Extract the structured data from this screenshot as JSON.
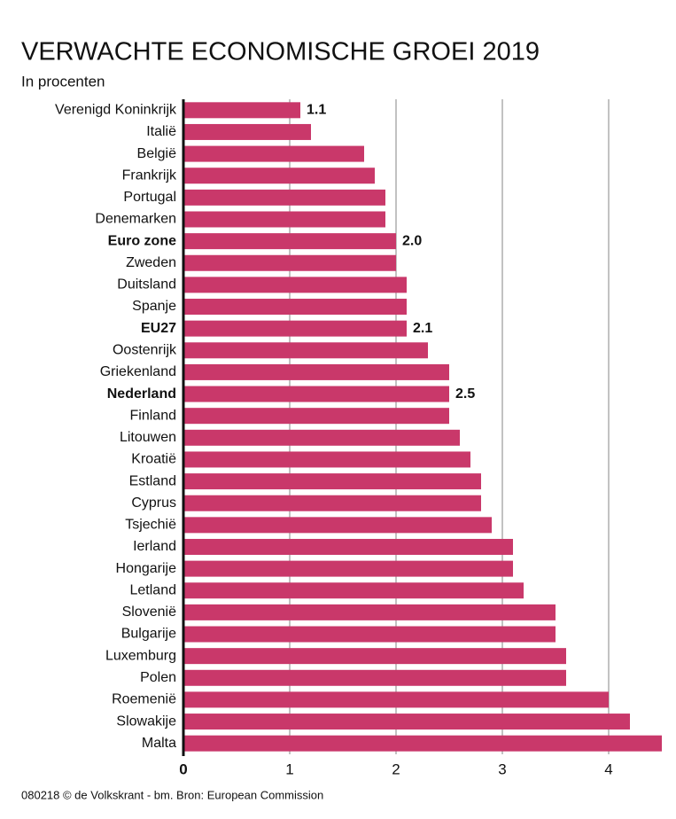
{
  "chart_data": {
    "type": "hbar",
    "title": "VERWACHTE ECONOMISCHE GROEI 2019",
    "subtitle": "In procenten",
    "source": "080218 © de Volkskrant - bm. Bron: European Commission",
    "categories": [
      "Verenigd Koninkrijk",
      "Italië",
      "België",
      "Frankrijk",
      "Portugal",
      "Denemarken",
      "Euro zone",
      "Zweden",
      "Duitsland",
      "Spanje",
      "EU27",
      "Oostenrijk",
      "Griekenland",
      "Nederland",
      "Finland",
      "Litouwen",
      "Kroatië",
      "Estland",
      "Cyprus",
      "Tsjechië",
      "Ierland",
      "Hongarije",
      "Letland",
      "Slovenië",
      "Bulgarije",
      "Luxemburg",
      "Polen",
      "Roemenië",
      "Slowakije",
      "Malta"
    ],
    "values": [
      1.1,
      1.2,
      1.7,
      1.8,
      1.9,
      1.9,
      2.0,
      2.0,
      2.1,
      2.1,
      2.1,
      2.3,
      2.5,
      2.5,
      2.5,
      2.6,
      2.7,
      2.8,
      2.8,
      2.9,
      3.1,
      3.1,
      3.2,
      3.5,
      3.5,
      3.6,
      3.6,
      4.0,
      4.2,
      4.5
    ],
    "value_labels": [
      "1.1",
      null,
      null,
      null,
      null,
      null,
      "2.0",
      null,
      null,
      null,
      "2.1",
      null,
      null,
      "2.5",
      null,
      null,
      null,
      null,
      null,
      null,
      null,
      null,
      null,
      null,
      null,
      null,
      null,
      null,
      null,
      null
    ],
    "bold_categories": [
      6,
      10,
      13
    ],
    "color": "#c9386a",
    "xlim": [
      0,
      4.5
    ],
    "xticks": [
      0,
      1,
      2,
      3,
      4
    ],
    "grid": true
  }
}
